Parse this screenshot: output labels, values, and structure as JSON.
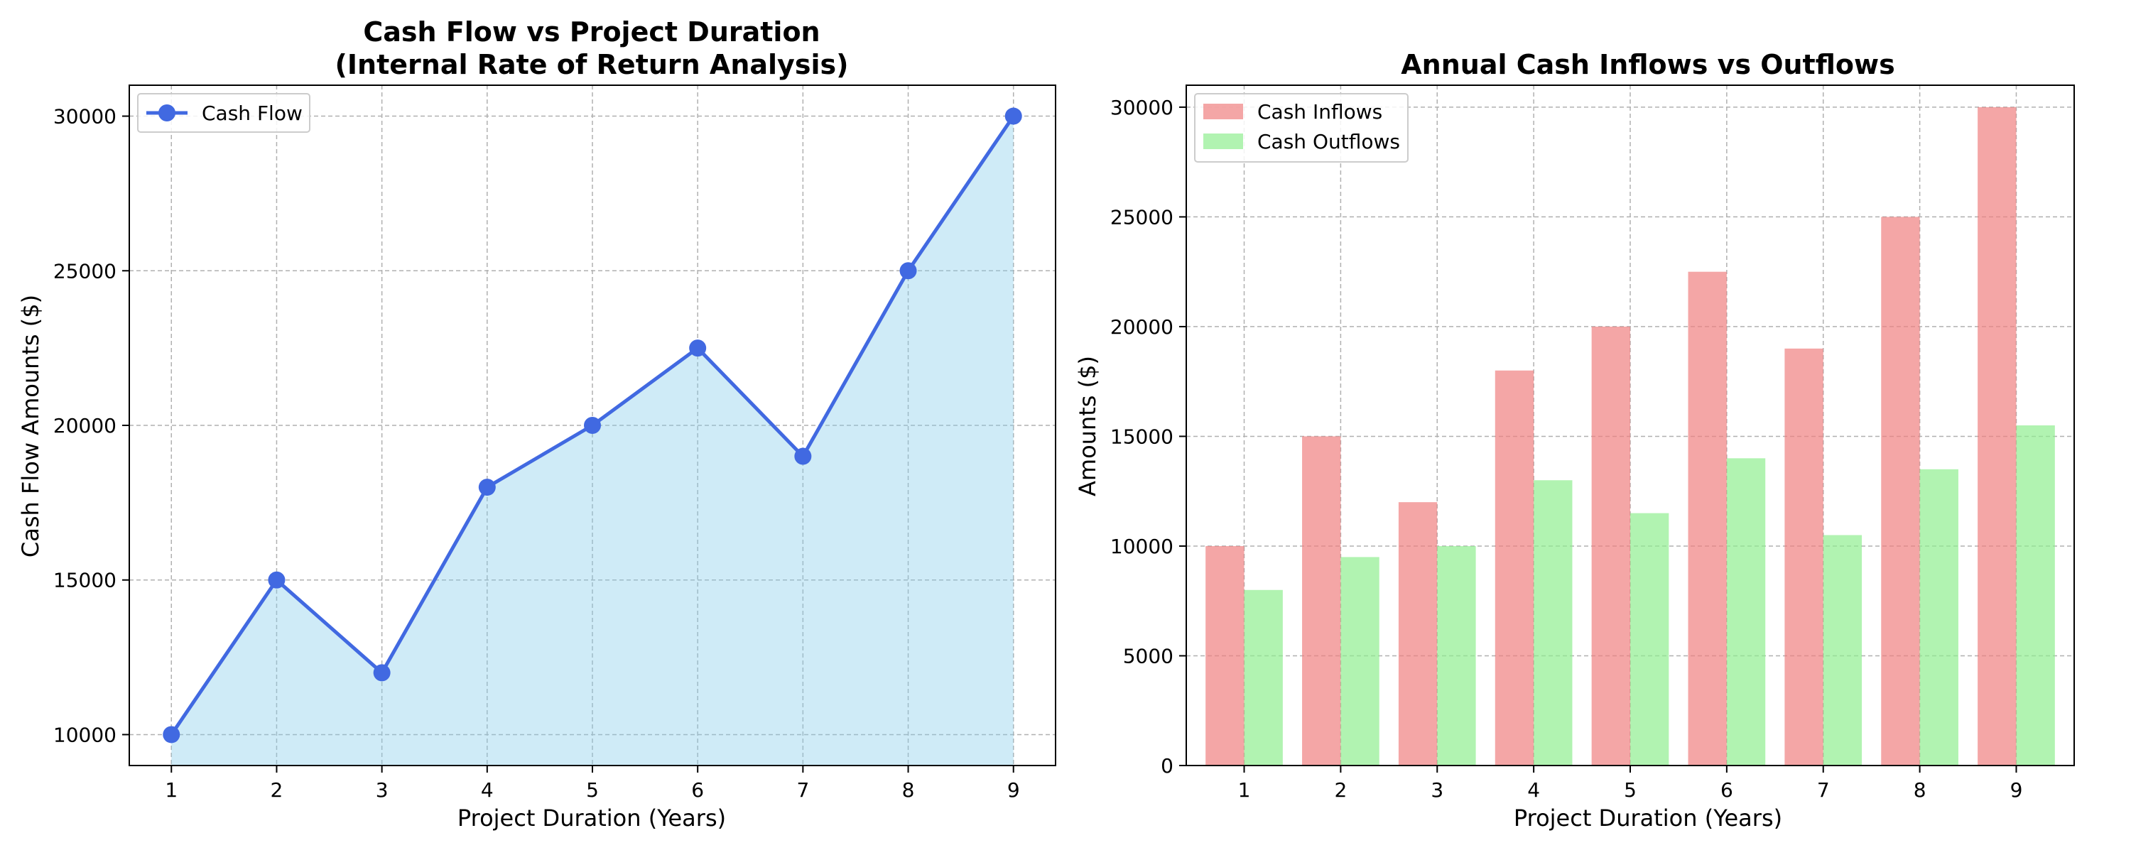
{
  "colors": {
    "line": "#4169e1",
    "area_fill": "#87ceeb",
    "inflow_bar": "#f08080",
    "outflow_bar": "#90ee90",
    "grid": "#b0b0b0",
    "axis": "#000000"
  },
  "chart_data": [
    {
      "type": "line",
      "title_line1": "Cash Flow vs Project Duration",
      "title_line2": "(Internal Rate of Return Analysis)",
      "xlabel": "Project Duration (Years)",
      "ylabel": "Cash Flow Amounts ($)",
      "x": [
        1,
        2,
        3,
        4,
        5,
        6,
        7,
        8,
        9
      ],
      "xticks": [
        "1",
        "2",
        "3",
        "4",
        "5",
        "6",
        "7",
        "8",
        "9"
      ],
      "yticks": [
        "10000",
        "15000",
        "20000",
        "25000",
        "30000"
      ],
      "xlim": [
        0.6,
        9.4
      ],
      "ylim": [
        9000,
        31000
      ],
      "grid": true,
      "legend_position": "top-left",
      "series": [
        {
          "name": "Cash Flow",
          "values": [
            10000,
            15000,
            12000,
            18000,
            20000,
            22500,
            19000,
            25000,
            30000
          ],
          "marker": "circle",
          "area_fill": true
        }
      ]
    },
    {
      "type": "bar",
      "title": "Annual Cash Inflows vs Outflows",
      "xlabel": "Project Duration (Years)",
      "ylabel": "Amounts ($)",
      "categories": [
        "1",
        "2",
        "3",
        "4",
        "5",
        "6",
        "7",
        "8",
        "9"
      ],
      "yticks": [
        "0",
        "5000",
        "10000",
        "15000",
        "20000",
        "25000",
        "30000"
      ],
      "ylim": [
        0,
        31000
      ],
      "grid": true,
      "legend_position": "top-left",
      "series": [
        {
          "name": "Cash Inflows",
          "values": [
            10000,
            15000,
            12000,
            18000,
            20000,
            22500,
            19000,
            25000,
            30000
          ]
        },
        {
          "name": "Cash Outflows",
          "values": [
            8000,
            9500,
            10000,
            13000,
            11500,
            14000,
            10500,
            13500,
            15500
          ]
        }
      ]
    }
  ]
}
